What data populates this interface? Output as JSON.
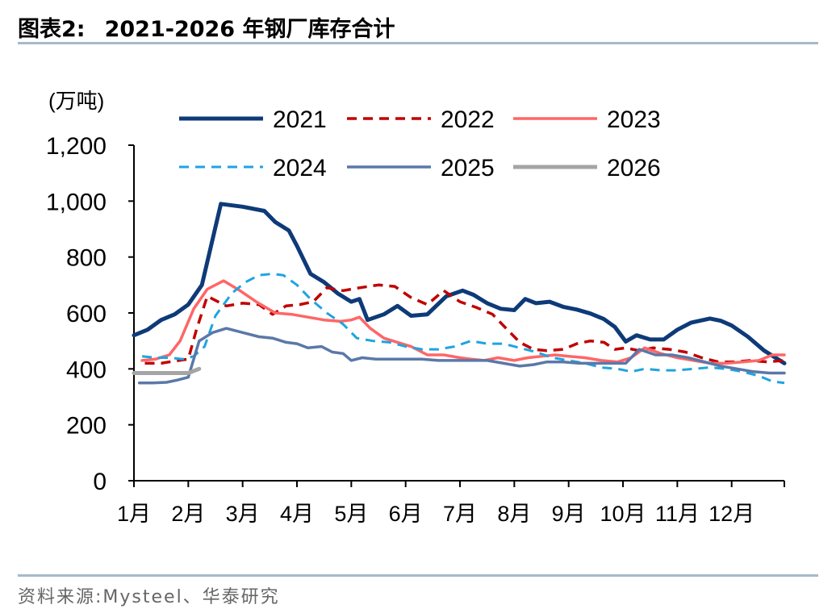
{
  "header": {
    "figure_label": "图表2:",
    "title": "2021-2026 年钢厂库存合计"
  },
  "footer": {
    "source": "资料来源:Mysteel、华泰研究"
  },
  "chart_data": {
    "type": "line",
    "unit_label": "(万吨)",
    "ylim": [
      0,
      1200
    ],
    "yticks": [
      0,
      200,
      400,
      600,
      800,
      1000,
      1200
    ],
    "ytick_labels": [
      "0",
      "200",
      "400",
      "600",
      "800",
      "1,000",
      "1,200"
    ],
    "xlim": [
      1,
      12.97
    ],
    "months": [
      1,
      2,
      3,
      4,
      5,
      6,
      7,
      8,
      9,
      10,
      11,
      12
    ],
    "month_labels": [
      "1月",
      "2月",
      "3月",
      "4月",
      "5月",
      "6月",
      "7月",
      "8月",
      "9月",
      "10月",
      "11月",
      "12月"
    ],
    "legend_position": "top",
    "series": [
      {
        "name": "2021",
        "color": "#0e3a78",
        "dash": "solid",
        "width": 5,
        "x": [
          1.0,
          1.25,
          1.5,
          1.75,
          2.0,
          2.25,
          2.6,
          3.0,
          3.4,
          3.6,
          3.85,
          4.0,
          4.25,
          4.5,
          4.75,
          5.0,
          5.15,
          5.3,
          5.6,
          5.85,
          6.1,
          6.4,
          6.75,
          7.05,
          7.25,
          7.5,
          7.75,
          8.0,
          8.2,
          8.4,
          8.65,
          8.9,
          9.15,
          9.4,
          9.65,
          9.85,
          10.05,
          10.25,
          10.5,
          10.75,
          11.0,
          11.25,
          11.6,
          11.8,
          12.0,
          12.3,
          12.6,
          12.97
        ],
        "values": [
          520,
          540,
          575,
          595,
          630,
          700,
          990,
          980,
          965,
          925,
          895,
          840,
          740,
          710,
          670,
          640,
          650,
          575,
          595,
          625,
          590,
          595,
          660,
          680,
          665,
          635,
          615,
          610,
          650,
          635,
          640,
          622,
          612,
          598,
          578,
          550,
          498,
          520,
          505,
          505,
          540,
          565,
          580,
          572,
          555,
          515,
          465,
          420
        ]
      },
      {
        "name": "2022",
        "color": "#c00000",
        "dash": "dashed",
        "width": 3.5,
        "x": [
          1.2,
          1.5,
          1.75,
          2.0,
          2.15,
          2.35,
          2.7,
          3.0,
          3.3,
          3.55,
          3.8,
          4.05,
          4.3,
          4.55,
          4.85,
          5.15,
          5.5,
          5.8,
          6.1,
          6.4,
          6.7,
          7.0,
          7.3,
          7.6,
          7.85,
          8.1,
          8.35,
          8.6,
          8.9,
          9.15,
          9.4,
          9.65,
          9.85,
          10.05,
          10.3,
          10.55,
          10.85,
          11.15,
          11.45,
          11.75,
          12.05,
          12.35,
          12.65,
          12.97
        ],
        "values": [
          420,
          420,
          428,
          435,
          540,
          660,
          625,
          635,
          630,
          595,
          625,
          630,
          640,
          690,
          680,
          690,
          700,
          695,
          655,
          630,
          680,
          640,
          620,
          595,
          545,
          495,
          470,
          465,
          470,
          490,
          500,
          495,
          470,
          475,
          465,
          475,
          470,
          460,
          440,
          425,
          425,
          430,
          425,
          430
        ]
      },
      {
        "name": "2023",
        "color": "#ff6666",
        "dash": "solid",
        "width": 3.5,
        "x": [
          1.15,
          1.4,
          1.65,
          1.85,
          2.1,
          2.35,
          2.65,
          2.95,
          3.25,
          3.6,
          3.9,
          4.2,
          4.5,
          4.8,
          5.0,
          5.15,
          5.35,
          5.6,
          5.85,
          6.1,
          6.4,
          6.7,
          7.0,
          7.2,
          7.45,
          7.7,
          8.0,
          8.25,
          8.5,
          8.75,
          9.0,
          9.3,
          9.6,
          9.9,
          10.15,
          10.4,
          10.7,
          11.0,
          11.3,
          11.6,
          11.9,
          12.2,
          12.5,
          12.75,
          12.97
        ],
        "values": [
          430,
          435,
          450,
          500,
          615,
          685,
          715,
          680,
          640,
          600,
          595,
          585,
          575,
          570,
          575,
          585,
          545,
          510,
          495,
          480,
          450,
          450,
          440,
          435,
          430,
          440,
          430,
          440,
          445,
          450,
          445,
          440,
          430,
          425,
          440,
          475,
          455,
          440,
          430,
          420,
          420,
          425,
          430,
          450,
          450
        ]
      },
      {
        "name": "2024",
        "color": "#1fa4e0",
        "dash": "dashed",
        "width": 3,
        "x": [
          1.15,
          1.4,
          1.65,
          1.9,
          2.1,
          2.3,
          2.5,
          2.8,
          3.05,
          3.3,
          3.55,
          3.75,
          4.0,
          4.25,
          4.55,
          4.85,
          5.1,
          5.4,
          5.7,
          6.0,
          6.3,
          6.6,
          6.9,
          7.2,
          7.5,
          7.8,
          8.1,
          8.4,
          8.7,
          9.0,
          9.3,
          9.6,
          9.9,
          10.15,
          10.4,
          10.7,
          11.0,
          11.3,
          11.6,
          11.9,
          12.2,
          12.5,
          12.75,
          12.97
        ],
        "values": [
          445,
          440,
          440,
          435,
          445,
          480,
          590,
          670,
          710,
          735,
          740,
          735,
          700,
          650,
          600,
          560,
          510,
          500,
          495,
          480,
          470,
          470,
          480,
          500,
          490,
          490,
          475,
          460,
          440,
          430,
          420,
          405,
          400,
          390,
          400,
          395,
          395,
          400,
          405,
          400,
          390,
          375,
          355,
          350
        ]
      },
      {
        "name": "2025",
        "color": "#5a78a8",
        "dash": "solid",
        "width": 3.5,
        "x": [
          1.1,
          1.35,
          1.6,
          1.8,
          2.0,
          2.2,
          2.45,
          2.7,
          3.0,
          3.3,
          3.55,
          3.8,
          4.0,
          4.2,
          4.45,
          4.65,
          4.85,
          5.0,
          5.2,
          5.45,
          5.7,
          6.0,
          6.3,
          6.6,
          6.9,
          7.2,
          7.5,
          7.8,
          8.1,
          8.35,
          8.6,
          8.9,
          9.2,
          9.5,
          9.8,
          10.05,
          10.3,
          10.6,
          10.9,
          11.2,
          11.5,
          11.8,
          12.1,
          12.4,
          12.7,
          12.97
        ],
        "values": [
          350,
          350,
          352,
          360,
          370,
          500,
          530,
          545,
          530,
          515,
          510,
          495,
          490,
          475,
          480,
          460,
          455,
          430,
          440,
          435,
          435,
          435,
          435,
          430,
          430,
          430,
          430,
          420,
          410,
          415,
          425,
          425,
          420,
          420,
          420,
          420,
          470,
          450,
          450,
          440,
          425,
          410,
          400,
          390,
          385,
          385
        ]
      },
      {
        "name": "2026",
        "color": "#a5a5a5",
        "dash": "solid",
        "width": 5,
        "x": [
          1.0,
          1.35,
          1.7,
          2.0,
          2.2
        ],
        "values": [
          385,
          385,
          385,
          385,
          400
        ]
      }
    ]
  }
}
